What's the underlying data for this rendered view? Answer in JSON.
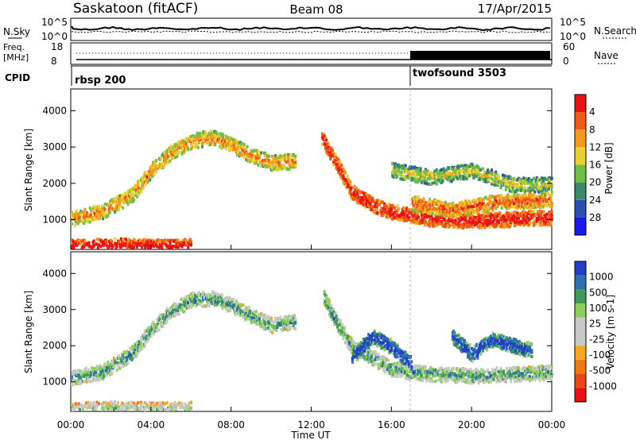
{
  "header": {
    "title": "Saskatoon (fitACF)",
    "beam": "Beam 08",
    "date": "17/Apr/2015"
  },
  "noise_panel": {
    "left_label": "N.Sky",
    "left_ticks": [
      "10^5",
      "10^0"
    ],
    "right_ticks": [
      "10^5",
      "10^0"
    ],
    "right_label": "N.Search"
  },
  "freq_panel": {
    "left_label_1": "Freq.",
    "left_label_2": "[MHz]",
    "left_ticks": [
      "18",
      "8"
    ],
    "right_ticks": [
      "60",
      "0"
    ],
    "right_label": "Nave"
  },
  "cpid_panel": {
    "label": "CPID",
    "programs": [
      {
        "name": "rbsp 200",
        "start_hour": 0
      },
      {
        "name": "twofsound 3503",
        "start_hour": 16.95
      }
    ]
  },
  "x_axis": {
    "label": "Time UT",
    "ticks": [
      "00:00",
      "04:00",
      "08:00",
      "12:00",
      "16:00",
      "20:00",
      "00:00"
    ],
    "range_hours": [
      0,
      24
    ]
  },
  "colors": {
    "power_scale": [
      "#1a1aee",
      "#2a4fb0",
      "#3a8a6a",
      "#6fbe46",
      "#e8d030",
      "#f39a1c",
      "#f05a14",
      "#e81414"
    ],
    "velocity_scale": [
      "#2040c8",
      "#2e6fb0",
      "#3f9a5a",
      "#8ccf5a",
      "#c8c8c8",
      "#c8c8c8",
      "#f5a623",
      "#f07a10",
      "#e84818",
      "#e81010"
    ]
  },
  "chart_data": [
    {
      "type": "heatmap",
      "name": "power",
      "xlabel": "",
      "ylabel": "Slant Range [km]",
      "yticks": [
        1000,
        2000,
        3000,
        4000
      ],
      "ylim": [
        180,
        4600
      ],
      "colorbar": {
        "label": "Power [dB]",
        "ticks": [
          "4",
          "8",
          "12",
          "16",
          "20",
          "24",
          "28"
        ]
      },
      "tracks": [
        {
          "points": [
            [
              0,
              1050
            ],
            [
              1.5,
              1250
            ],
            [
              3,
              1700
            ],
            [
              4,
              2400
            ],
            [
              5,
              2900
            ],
            [
              6,
              3200
            ],
            [
              7,
              3300
            ],
            [
              8,
              3100
            ],
            [
              9,
              2800
            ],
            [
              10,
              2600
            ],
            [
              11.2,
              2650
            ]
          ],
          "level": 0.45
        },
        {
          "points": [
            [
              0,
              280
            ],
            [
              1,
              300
            ],
            [
              2,
              310
            ],
            [
              3,
              320
            ],
            [
              4,
              300
            ],
            [
              5,
              290
            ],
            [
              6,
              300
            ]
          ],
          "level": 0.75
        },
        {
          "points": [
            [
              12.5,
              3300
            ],
            [
              13,
              2800
            ],
            [
              14,
              1800
            ],
            [
              15,
              1450
            ],
            [
              16,
              1250
            ],
            [
              17,
              1150
            ],
            [
              18,
              1050
            ],
            [
              20,
              1000
            ],
            [
              22,
              1050
            ],
            [
              24,
              1100
            ]
          ],
          "level": 0.7
        },
        {
          "points": [
            [
              16,
              2400
            ],
            [
              18,
              2200
            ],
            [
              20,
              2400
            ],
            [
              22,
              2000
            ],
            [
              24,
              2000
            ]
          ],
          "level": 0.3
        },
        {
          "points": [
            [
              17,
              1500
            ],
            [
              19,
              1300
            ],
            [
              21,
              1500
            ],
            [
              24,
              1600
            ]
          ],
          "level": 0.55
        }
      ]
    },
    {
      "type": "heatmap",
      "name": "velocity",
      "xlabel": "Time UT",
      "ylabel": "Slant Range [km]",
      "yticks": [
        1000,
        2000,
        3000,
        4000
      ],
      "ylim": [
        180,
        4600
      ],
      "colorbar": {
        "label": "Velocity [m s-1]",
        "ticks": [
          "1000",
          "500",
          "100",
          "25",
          "-25",
          "-100",
          "-500",
          "-1000"
        ]
      },
      "tracks": [
        {
          "points": [
            [
              0,
              1150
            ],
            [
              1.5,
              1300
            ],
            [
              3,
              1800
            ],
            [
              4,
              2500
            ],
            [
              5,
              3000
            ],
            [
              6,
              3300
            ],
            [
              7,
              3350
            ],
            [
              8,
              3150
            ],
            [
              9,
              2850
            ],
            [
              10,
              2600
            ],
            [
              11.2,
              2700
            ]
          ],
          "level": 0.5
        },
        {
          "points": [
            [
              0,
              250
            ],
            [
              1,
              280
            ],
            [
              2,
              300
            ],
            [
              3,
              290
            ],
            [
              4,
              270
            ],
            [
              5,
              260
            ],
            [
              6,
              280
            ]
          ],
          "level": 0.35
        },
        {
          "points": [
            [
              12.6,
              3400
            ],
            [
              13,
              2900
            ],
            [
              14,
              2000
            ],
            [
              15,
              1700
            ],
            [
              16,
              1400
            ],
            [
              17,
              1300
            ],
            [
              18,
              1250
            ],
            [
              20,
              1200
            ],
            [
              22,
              1250
            ],
            [
              24,
              1300
            ]
          ],
          "level": 0.5
        },
        {
          "points": [
            [
              14,
              1700
            ],
            [
              15,
              2300
            ],
            [
              16,
              2000
            ],
            [
              17,
              1500
            ]
          ],
          "level": 0.75
        },
        {
          "points": [
            [
              19,
              2300
            ],
            [
              20,
              1800
            ],
            [
              21,
              2200
            ],
            [
              23,
              1900
            ]
          ],
          "level": 0.7
        }
      ]
    }
  ]
}
